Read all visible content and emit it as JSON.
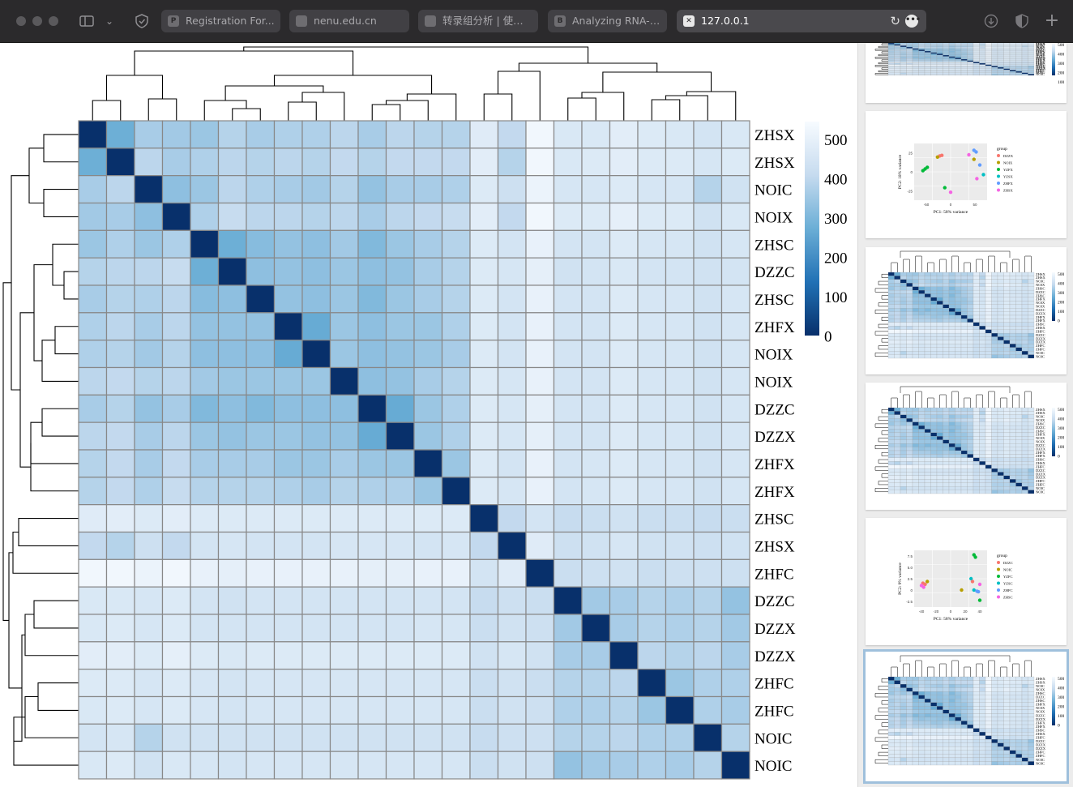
{
  "browser": {
    "tabs": [
      {
        "favicon": "P",
        "title": "Registration For...",
        "active": false
      },
      {
        "favicon": "",
        "title": "nenu.edu.cn",
        "active": false
      },
      {
        "favicon": "",
        "title": "转录组分析 | 使用 ...",
        "active": false
      },
      {
        "favicon": "B",
        "title": "Analyzing RNA-s...",
        "active": false
      },
      {
        "favicon": "",
        "title": "127.0.0.1",
        "active": true
      }
    ],
    "icons": [
      "window-close-icon",
      "window-minimize-icon",
      "window-maximize-icon",
      "sidebar-toggle-icon",
      "chevron-down-icon",
      "shield-icon",
      "reload-icon",
      "more-icon",
      "download-icon",
      "privacy-icon",
      "new-tab-icon"
    ]
  },
  "heatmap": {
    "row_labels": [
      "ZHSX",
      "ZHSX",
      "NOIC",
      "NOIX",
      "ZHSC",
      "DZZC",
      "ZHSC",
      "ZHFX",
      "NOIX",
      "NOIX",
      "DZZC",
      "DZZX",
      "ZHFX",
      "ZHFX",
      "ZHSC",
      "ZHSX",
      "ZHFC",
      "DZZC",
      "DZZX",
      "DZZX",
      "ZHFC",
      "ZHFC",
      "NOIC",
      "NOIC"
    ],
    "legend_labels": [
      "500",
      "400",
      "300",
      "200",
      "100",
      "0"
    ],
    "legend_range": [
      0,
      550
    ],
    "colors": {
      "low": "#08306b",
      "mid": "#6baed6",
      "high": "#f7fbff",
      "grid": "#888888"
    },
    "matrix": [
      [
        0,
        250,
        340,
        330,
        320,
        360,
        340,
        350,
        350,
        370,
        340,
        370,
        360,
        360,
        470,
        380,
        530,
        450,
        450,
        480,
        460,
        450,
        430,
        450
      ],
      [
        250,
        0,
        370,
        340,
        350,
        370,
        360,
        370,
        360,
        380,
        360,
        380,
        380,
        380,
        480,
        360,
        530,
        450,
        460,
        480,
        460,
        460,
        440,
        460
      ],
      [
        340,
        370,
        0,
        300,
        320,
        370,
        350,
        340,
        330,
        360,
        310,
        340,
        340,
        350,
        460,
        410,
        510,
        440,
        440,
        460,
        440,
        440,
        360,
        420
      ],
      [
        330,
        340,
        300,
        0,
        350,
        390,
        370,
        370,
        360,
        370,
        340,
        370,
        380,
        390,
        480,
        380,
        530,
        460,
        460,
        490,
        460,
        460,
        420,
        450
      ],
      [
        320,
        350,
        320,
        350,
        0,
        250,
        290,
        310,
        300,
        330,
        280,
        320,
        340,
        360,
        460,
        430,
        500,
        430,
        430,
        460,
        440,
        440,
        420,
        440
      ],
      [
        360,
        370,
        370,
        390,
        250,
        0,
        300,
        310,
        300,
        320,
        300,
        310,
        340,
        360,
        460,
        440,
        490,
        420,
        430,
        450,
        430,
        430,
        420,
        430
      ],
      [
        340,
        360,
        350,
        370,
        290,
        300,
        0,
        310,
        300,
        320,
        280,
        320,
        340,
        360,
        460,
        430,
        500,
        430,
        430,
        460,
        440,
        440,
        420,
        440
      ],
      [
        350,
        370,
        340,
        370,
        310,
        310,
        310,
        0,
        240,
        320,
        300,
        320,
        320,
        350,
        460,
        430,
        500,
        430,
        430,
        460,
        440,
        440,
        420,
        440
      ],
      [
        350,
        360,
        330,
        360,
        300,
        300,
        300,
        240,
        0,
        320,
        300,
        310,
        320,
        340,
        460,
        430,
        500,
        430,
        430,
        460,
        440,
        440,
        420,
        440
      ],
      [
        370,
        380,
        360,
        370,
        330,
        320,
        320,
        320,
        320,
        0,
        300,
        310,
        340,
        360,
        460,
        440,
        500,
        430,
        430,
        460,
        440,
        440,
        420,
        440
      ],
      [
        340,
        360,
        310,
        340,
        280,
        300,
        280,
        300,
        300,
        300,
        0,
        240,
        320,
        350,
        460,
        440,
        490,
        430,
        430,
        460,
        440,
        440,
        420,
        440
      ],
      [
        370,
        380,
        340,
        370,
        320,
        310,
        320,
        320,
        310,
        310,
        240,
        0,
        320,
        350,
        460,
        440,
        490,
        430,
        430,
        460,
        440,
        440,
        420,
        440
      ],
      [
        360,
        380,
        340,
        380,
        340,
        340,
        340,
        320,
        320,
        340,
        320,
        320,
        0,
        320,
        460,
        430,
        500,
        430,
        440,
        460,
        440,
        440,
        420,
        440
      ],
      [
        360,
        380,
        350,
        390,
        360,
        360,
        360,
        350,
        340,
        360,
        350,
        350,
        320,
        0,
        460,
        440,
        500,
        430,
        440,
        460,
        440,
        440,
        420,
        440
      ],
      [
        470,
        480,
        460,
        480,
        460,
        460,
        460,
        460,
        460,
        460,
        460,
        460,
        460,
        460,
        0,
        380,
        430,
        390,
        400,
        420,
        400,
        400,
        390,
        400
      ],
      [
        380,
        360,
        410,
        380,
        430,
        440,
        430,
        430,
        430,
        440,
        440,
        440,
        430,
        440,
        380,
        0,
        470,
        410,
        420,
        440,
        420,
        420,
        410,
        420
      ],
      [
        530,
        530,
        510,
        530,
        500,
        490,
        500,
        500,
        500,
        500,
        490,
        490,
        500,
        500,
        430,
        470,
        0,
        400,
        410,
        420,
        400,
        410,
        410,
        410
      ],
      [
        450,
        450,
        440,
        460,
        430,
        420,
        430,
        430,
        430,
        430,
        430,
        430,
        430,
        430,
        390,
        410,
        400,
        0,
        330,
        340,
        360,
        350,
        360,
        310
      ],
      [
        450,
        460,
        440,
        460,
        430,
        430,
        430,
        430,
        430,
        430,
        430,
        430,
        440,
        440,
        400,
        420,
        410,
        330,
        0,
        340,
        360,
        350,
        360,
        330
      ],
      [
        480,
        480,
        460,
        490,
        460,
        450,
        460,
        460,
        460,
        460,
        460,
        460,
        460,
        460,
        420,
        440,
        420,
        340,
        340,
        0,
        370,
        360,
        370,
        340
      ],
      [
        460,
        460,
        440,
        460,
        440,
        430,
        440,
        440,
        440,
        440,
        440,
        440,
        440,
        440,
        400,
        420,
        400,
        360,
        360,
        370,
        0,
        320,
        350,
        350
      ],
      [
        450,
        460,
        440,
        460,
        440,
        430,
        440,
        440,
        440,
        440,
        440,
        440,
        440,
        440,
        400,
        420,
        410,
        350,
        350,
        360,
        320,
        0,
        350,
        340
      ],
      [
        430,
        440,
        360,
        420,
        420,
        420,
        420,
        420,
        420,
        420,
        420,
        420,
        420,
        420,
        390,
        410,
        410,
        360,
        360,
        370,
        350,
        350,
        0,
        360
      ],
      [
        450,
        460,
        420,
        450,
        440,
        430,
        440,
        440,
        440,
        440,
        440,
        440,
        440,
        440,
        400,
        420,
        410,
        310,
        330,
        340,
        350,
        340,
        360,
        0
      ]
    ]
  },
  "thumbnails": [
    {
      "kind": "heatmap",
      "selected": false,
      "legend": [
        "500",
        "400",
        "300",
        "200",
        "100"
      ]
    },
    {
      "kind": "pca",
      "selected": false,
      "title": "group",
      "xlabel": "PC1: 58% variance",
      "ylabel": "PC2: 18% variance",
      "groups": [
        "DZZX",
        "NOIX",
        "YZFX",
        "YZSX",
        "ZHFX",
        "ZHSX"
      ],
      "group_colors": [
        "#f8766d",
        "#b79f00",
        "#00ba38",
        "#00bfc4",
        "#619cff",
        "#f564e3"
      ],
      "xticks": [
        "-50",
        "0",
        "50"
      ],
      "yticks": [
        "25",
        "0",
        "-25"
      ]
    },
    {
      "kind": "heatmap",
      "selected": false,
      "legend": [
        "500",
        "400",
        "300",
        "200",
        "100",
        "0"
      ]
    },
    {
      "kind": "heatmap",
      "selected": false,
      "legend": [
        "500",
        "400",
        "300",
        "200",
        "100",
        "0"
      ]
    },
    {
      "kind": "pca",
      "selected": false,
      "title": "group",
      "xlabel": "PC1: 58% variance",
      "ylabel": "PC2: 9% variance",
      "groups": [
        "DZZC",
        "NOIC",
        "YZFC",
        "YZSC",
        "ZHFC",
        "ZHSC"
      ],
      "group_colors": [
        "#f8766d",
        "#b79f00",
        "#00ba38",
        "#00bfc4",
        "#619cff",
        "#f564e3"
      ],
      "xticks": [
        "-40",
        "-20",
        "0",
        "20",
        "40"
      ],
      "yticks": [
        "7.5",
        "5.0",
        "2.5",
        "0",
        "-2.5"
      ]
    },
    {
      "kind": "heatmap",
      "selected": true,
      "legend": [
        "500",
        "400",
        "300",
        "200",
        "100",
        "0"
      ]
    }
  ]
}
